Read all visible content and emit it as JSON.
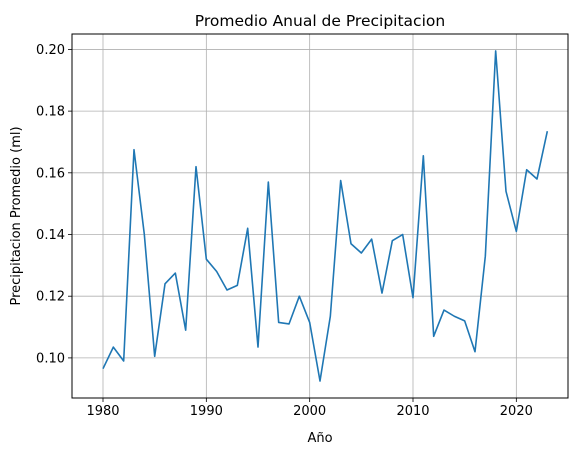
{
  "chart_data": {
    "type": "line",
    "title": "Promedio Anual de Precipitacion",
    "xlabel": "Año",
    "ylabel": "Precipitacion Promedio (ml)",
    "xlim": [
      1977,
      2025
    ],
    "ylim": [
      0.087,
      0.205
    ],
    "xticks": [
      1980,
      1990,
      2000,
      2010,
      2020
    ],
    "yticks": [
      0.1,
      0.12,
      0.14,
      0.16,
      0.18,
      0.2
    ],
    "ytick_labels": [
      "0.10",
      "0.12",
      "0.14",
      "0.16",
      "0.18",
      "0.20"
    ],
    "grid": true,
    "line_color": "#1f77b4",
    "series": [
      {
        "x": [
          1980,
          1981,
          1982,
          1983,
          1984,
          1985,
          1986,
          1987,
          1988,
          1989,
          1990,
          1991,
          1992,
          1993,
          1994,
          1995,
          1996,
          1997,
          1998,
          1999,
          2000,
          2001,
          2002,
          2003,
          2004,
          2005,
          2006,
          2007,
          2008,
          2009,
          2010,
          2011,
          2012,
          2013,
          2014,
          2015,
          2016,
          2017,
          2018,
          2019,
          2020,
          2021,
          2022,
          2023
        ],
        "values": [
          0.0965,
          0.1035,
          0.099,
          0.1675,
          0.14,
          0.1005,
          0.124,
          0.1275,
          0.109,
          0.162,
          0.132,
          0.128,
          0.122,
          0.1235,
          0.142,
          0.1035,
          0.157,
          0.1115,
          0.111,
          0.12,
          0.1115,
          0.0925,
          0.1135,
          0.1575,
          0.137,
          0.134,
          0.1385,
          0.121,
          0.138,
          0.14,
          0.1195,
          0.1655,
          0.107,
          0.1155,
          0.1135,
          0.112,
          0.102,
          0.133,
          0.1995,
          0.154,
          0.141,
          0.161,
          0.158,
          0.1735
        ]
      }
    ]
  }
}
